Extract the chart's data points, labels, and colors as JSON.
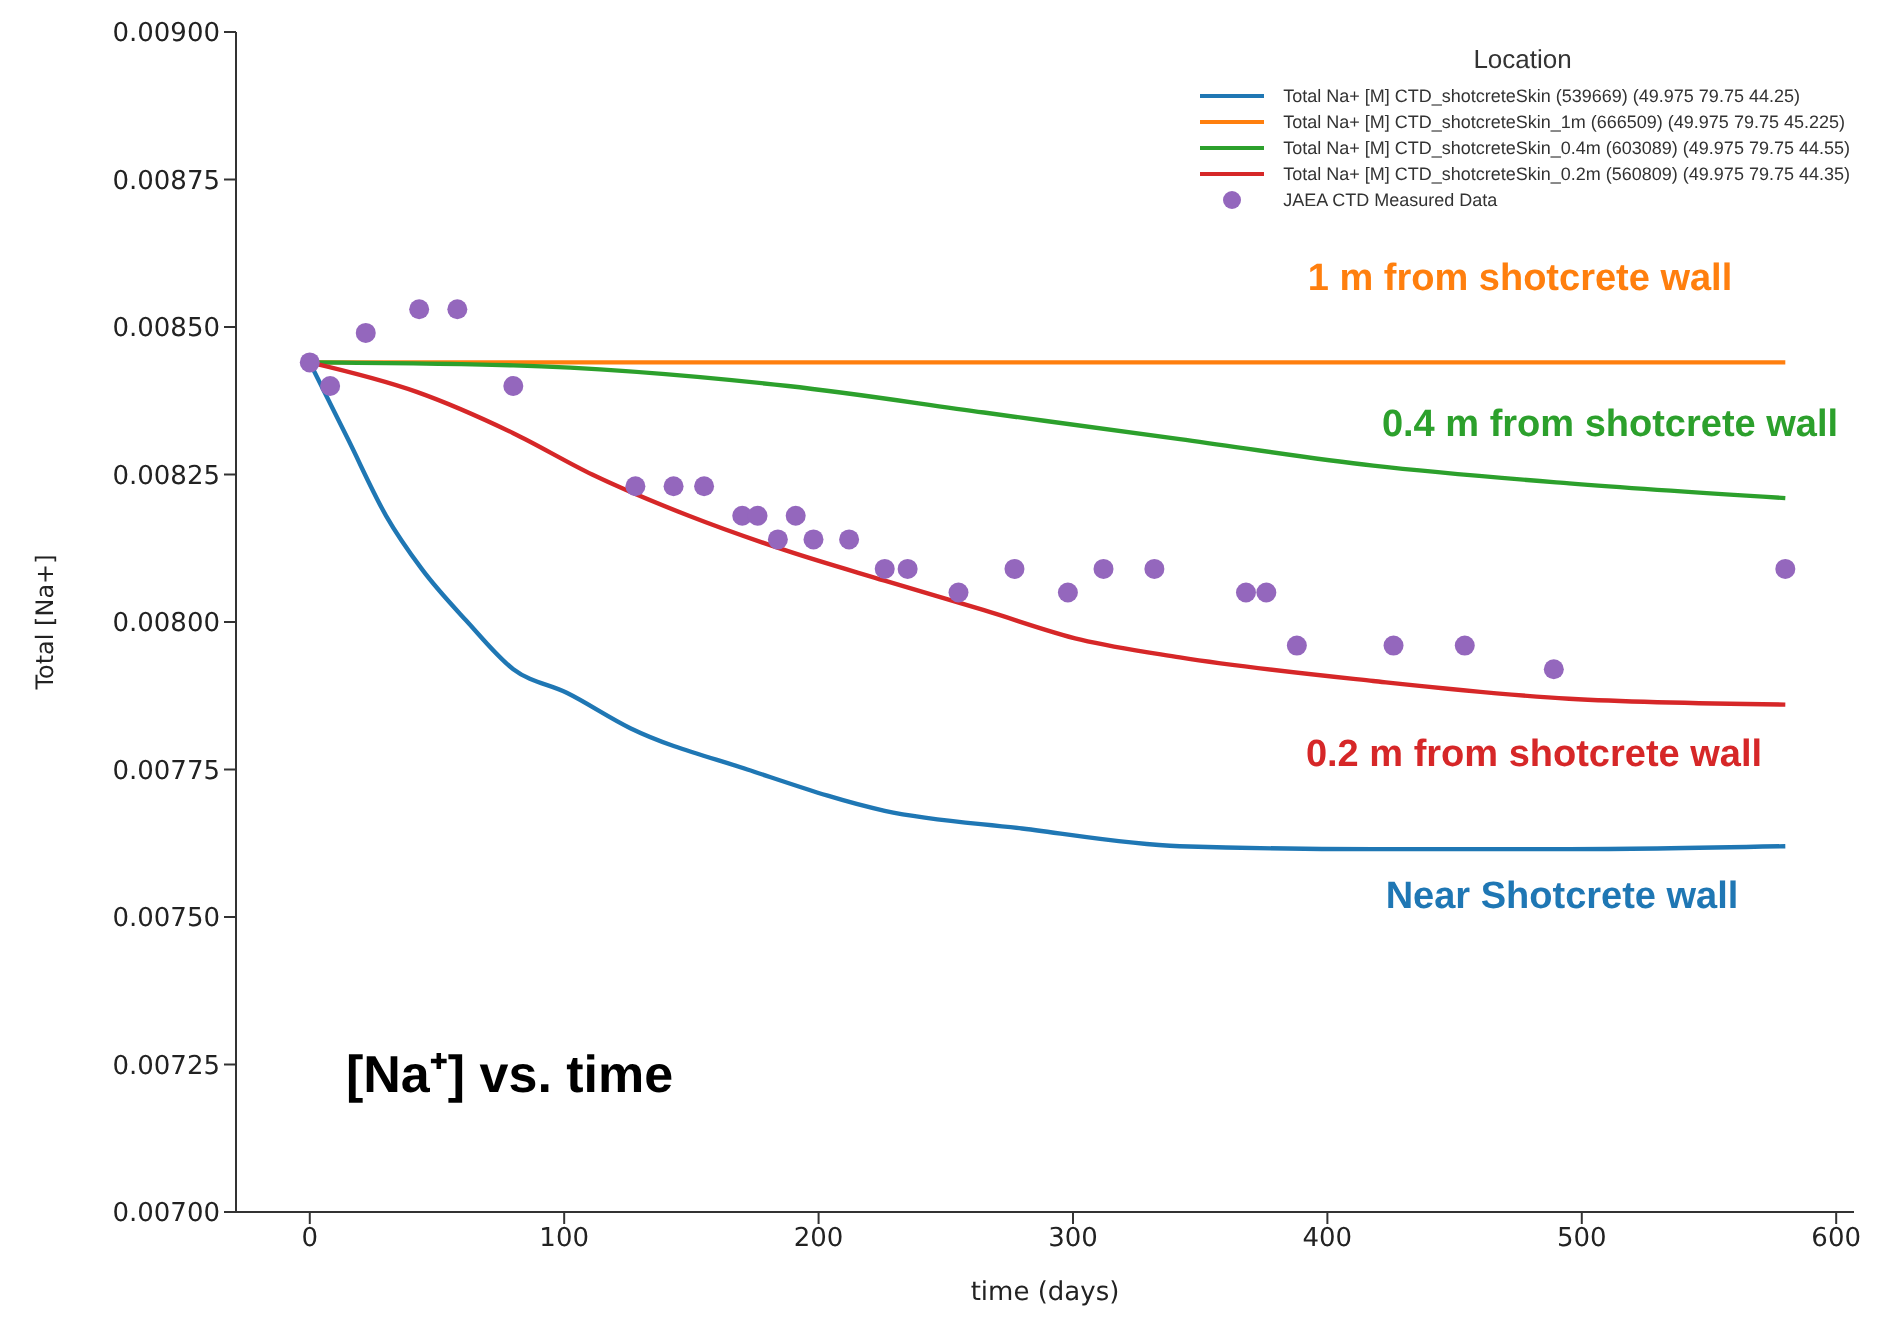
{
  "chart_data": {
    "type": "line",
    "title": "[Na⁺] vs. time",
    "xlabel": "time (days)",
    "ylabel": "Total [Na+]",
    "legend_title": "Location",
    "legend": "top right",
    "grid": false,
    "marker": "none",
    "line_style": "solid",
    "xlim": [
      -29,
      607
    ],
    "xticks": [
      0,
      100,
      200,
      300,
      400,
      500,
      600
    ],
    "ylim": [
      0.007,
      0.009
    ],
    "yticks": [
      {
        "value": 0.007,
        "label": "0.00700"
      },
      {
        "value": 0.00725,
        "label": "0.00725"
      },
      {
        "value": 0.0075,
        "label": "0.00750"
      },
      {
        "value": 0.00775,
        "label": "0.00775"
      },
      {
        "value": 0.008,
        "label": "0.00800"
      },
      {
        "value": 0.00825,
        "label": "0.00825"
      },
      {
        "value": 0.0085,
        "label": "0.00850"
      },
      {
        "value": 0.00875,
        "label": "0.00875"
      },
      {
        "value": 0.009,
        "label": "0.00900"
      }
    ],
    "series": [
      {
        "name": "Total Na+ [M] CTD_shotcreteSkin (539669) (49.975 79.75 44.25)",
        "color": "#1f77b4",
        "x": [
          0,
          15,
          30,
          44,
          62,
          80,
          101,
          126,
          172,
          226,
          280,
          342,
          418,
          495,
          580
        ],
        "values": [
          0.00844,
          0.00831,
          0.00818,
          0.00809,
          0.008,
          0.00792,
          0.00788,
          0.00782,
          0.00775,
          0.00768,
          0.00765,
          0.00762,
          0.007615,
          0.007615,
          0.00762
        ]
      },
      {
        "name": "Total Na+ [M] CTD_shotcreteSkin_1m (666509) (49.975 79.75 45.225)",
        "color": "#ff7f0e",
        "x": [
          0,
          580
        ],
        "values": [
          0.00844,
          0.00844
        ]
      },
      {
        "name": "Total Na+ [M] CTD_shotcreteSkin_0.4m (603089) (49.975 79.75 44.55)",
        "color": "#2ca02c",
        "x": [
          0,
          80,
          188,
          265,
          342,
          418,
          495,
          580
        ],
        "values": [
          0.00844,
          0.008435,
          0.0084,
          0.008355,
          0.00831,
          0.008265,
          0.008235,
          0.00821
        ]
      },
      {
        "name": "Total Na+ [M] CTD_shotcreteSkin_0.2m (560809) (49.975 79.75 44.35)",
        "color": "#d62728",
        "x": [
          0,
          42,
          80,
          111,
          149,
          188,
          226,
          265,
          303,
          342,
          418,
          495,
          580
        ],
        "values": [
          0.00844,
          0.00839,
          0.00832,
          0.00825,
          0.00818,
          0.00812,
          0.00807,
          0.00802,
          0.00797,
          0.00794,
          0.0079,
          0.00787,
          0.00786
        ]
      },
      {
        "name": "JAEA CTD Measured Data",
        "type": "scatter",
        "marker": "circle",
        "color": "#9467bd",
        "x": [
          0,
          8,
          22,
          43,
          58,
          80,
          128,
          143,
          155,
          170,
          176,
          191,
          184,
          198,
          212,
          226,
          235,
          277,
          255,
          298,
          312,
          332,
          580,
          368,
          376,
          388,
          426,
          454,
          489
        ],
        "values": [
          0.00844,
          0.0084,
          0.00849,
          0.00853,
          0.00853,
          0.0084,
          0.00823,
          0.00823,
          0.00823,
          0.00818,
          0.00818,
          0.00818,
          0.00814,
          0.00814,
          0.00814,
          0.00809,
          0.00809,
          0.00809,
          0.00805,
          0.00805,
          0.00809,
          0.00809,
          0.00809,
          0.00805,
          0.00805,
          0.00796,
          0.00796,
          0.00796,
          0.00792
        ]
      }
    ],
    "annotations": [
      "Near Shotcrete wall",
      "1 m from shotcrete wall",
      "0.4 m from shotcrete wall",
      "0.2 m from shotcrete wall"
    ]
  }
}
